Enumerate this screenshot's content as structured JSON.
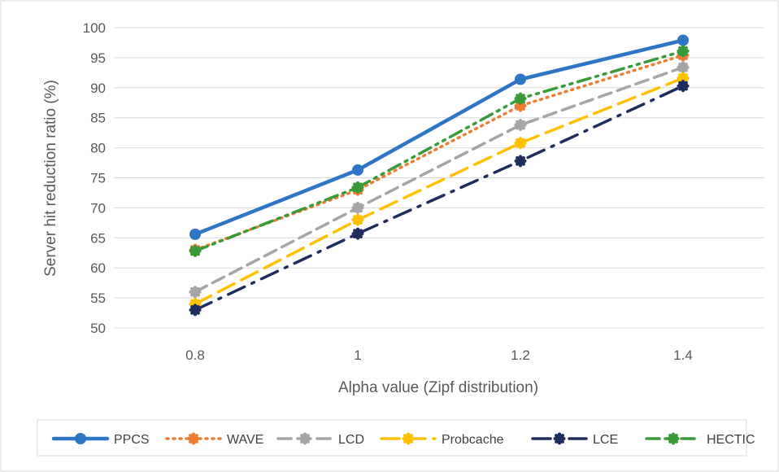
{
  "chart_data": {
    "type": "line",
    "title": "",
    "xlabel": "Alpha value (Zipf distribution)",
    "ylabel": "Server hit reduction ratio (%)",
    "categories": [
      "0.8",
      "1",
      "1.2",
      "1.4"
    ],
    "ylim": [
      50,
      100
    ],
    "ytick_step": 5,
    "y_ticks": [
      "50",
      "55",
      "60",
      "65",
      "70",
      "75",
      "80",
      "85",
      "90",
      "95",
      "100"
    ],
    "grid": true,
    "legend_position": "bottom",
    "series": [
      {
        "name": "PPCS",
        "values": [
          65.6,
          76.3,
          91.4,
          97.9
        ],
        "color": "#2E75C5",
        "dash": "solid",
        "marker": "circle"
      },
      {
        "name": "WAVE",
        "values": [
          63.0,
          73.0,
          87.0,
          95.4
        ],
        "color": "#ED7D31",
        "dash": "dot",
        "marker": "gear"
      },
      {
        "name": "LCD",
        "values": [
          56.0,
          70.0,
          83.8,
          93.4
        ],
        "color": "#A5A5A5",
        "dash": "dash",
        "marker": "gear"
      },
      {
        "name": "Probcache",
        "values": [
          54.0,
          68.0,
          80.8,
          91.6
        ],
        "color": "#FFC000",
        "dash": "longdash",
        "marker": "gear"
      },
      {
        "name": "LCE",
        "values": [
          53.0,
          65.7,
          77.8,
          90.3
        ],
        "color": "#1F2D5E",
        "dash": "dashdot",
        "marker": "gear"
      },
      {
        "name": "HECTIC",
        "values": [
          62.8,
          73.4,
          88.2,
          96.1
        ],
        "color": "#3A9A3A",
        "dash": "dashdotdot",
        "marker": "gear"
      }
    ]
  }
}
